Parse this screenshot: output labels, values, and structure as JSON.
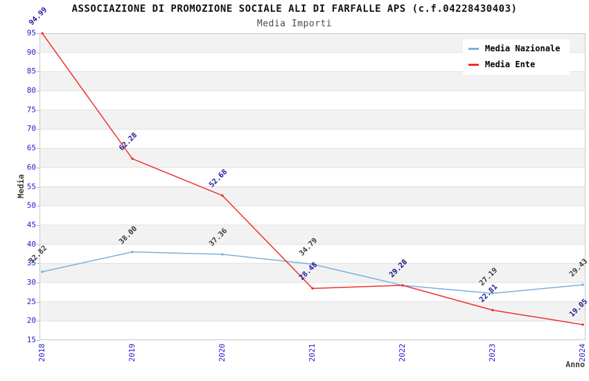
{
  "header": {
    "title": "ASSOCIAZIONE DI PROMOZIONE SOCIALE ALI DI FARFALLE APS (c.f.04228430403)",
    "subtitle": "Media Importi"
  },
  "axes": {
    "x_title": "Anno",
    "y_title": "Media",
    "x_ticks": [
      2018,
      2019,
      2020,
      2021,
      2022,
      2023,
      2024
    ],
    "y_ticks": [
      15,
      20,
      25,
      30,
      35,
      40,
      45,
      50,
      55,
      60,
      65,
      70,
      75,
      80,
      85,
      90,
      95
    ]
  },
  "colors": {
    "nazionale_line": "#7aaede",
    "ente_line": "#ee2e2e",
    "tick_label": "#2222cc",
    "nazionale_data_label": "#3c3c3c",
    "ente_data_label": "#20209a",
    "stripe": "#f2f2f2",
    "grid_line": "#e0e0e0",
    "plot_border": "#c8c8c8"
  },
  "chart_data": {
    "type": "line",
    "title": "Media Importi",
    "x": [
      2018,
      2019,
      2020,
      2021,
      2022,
      2023,
      2024
    ],
    "xlabel": "Anno",
    "ylabel": "Media",
    "ylim": [
      15,
      95
    ],
    "ytick_step": 5,
    "grid": "striped-horizontal-bands",
    "legend_position": "top-right",
    "series": [
      {
        "name": "Media Nazionale",
        "color": "#7aaede",
        "label_color": "#3c3c3c",
        "values": [
          32.82,
          38.0,
          37.36,
          34.79,
          29.28,
          27.19,
          29.43
        ]
      },
      {
        "name": "Media Ente",
        "color": "#ee2e2e",
        "label_color": "#20209a",
        "values": [
          94.99,
          62.28,
          52.68,
          28.48,
          29.28,
          22.81,
          19.05
        ]
      }
    ]
  }
}
